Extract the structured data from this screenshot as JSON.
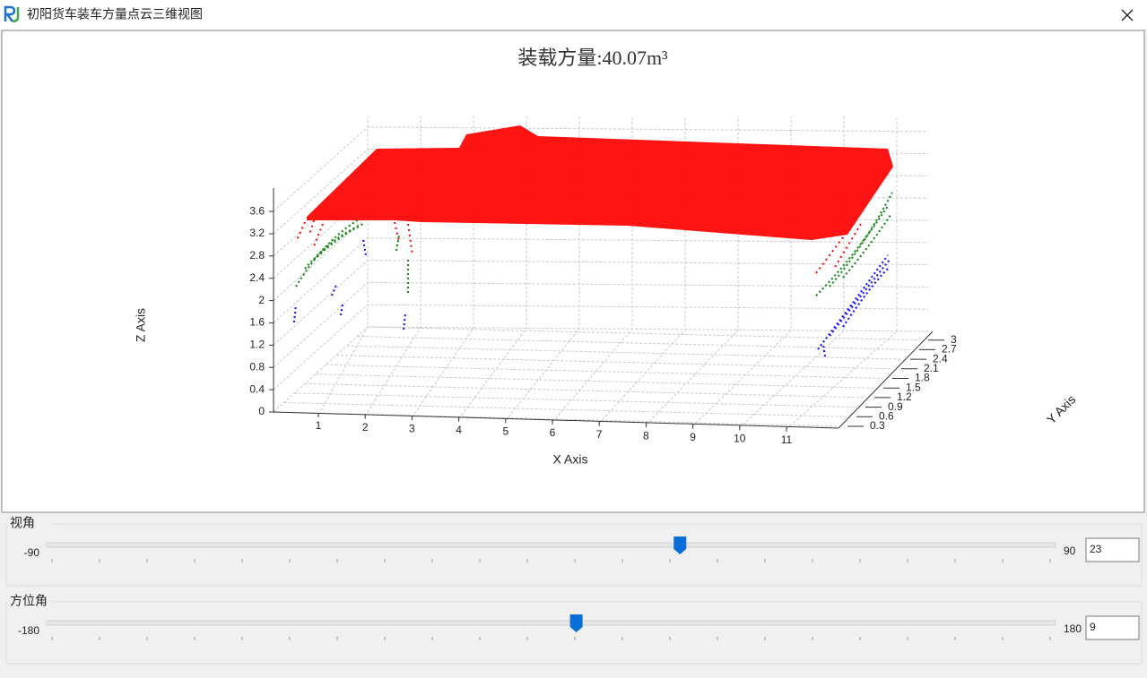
{
  "window": {
    "title": "初阳货车装车方量点云三维视图"
  },
  "chart": {
    "title": "装载方量:40.07m³",
    "x_axis": {
      "label": "X Axis",
      "ticks": [
        1,
        2,
        3,
        4,
        5,
        6,
        7,
        8,
        9,
        10,
        11
      ]
    },
    "y_axis": {
      "label": "Y Axis",
      "ticks": [
        0.3,
        0.6,
        0.9,
        1.2,
        1.5,
        1.8,
        2.1,
        2.4,
        2.7,
        3
      ]
    },
    "z_axis": {
      "label": "Z Axis",
      "ticks": [
        0,
        0.4,
        0.8,
        1.2,
        1.6,
        2,
        2.4,
        2.8,
        3.2,
        3.6
      ]
    }
  },
  "sliders": [
    {
      "label": "视角",
      "min": -90,
      "max": 90,
      "value": 23
    },
    {
      "label": "方位角",
      "min": -180,
      "max": 180,
      "value": 9
    }
  ]
}
